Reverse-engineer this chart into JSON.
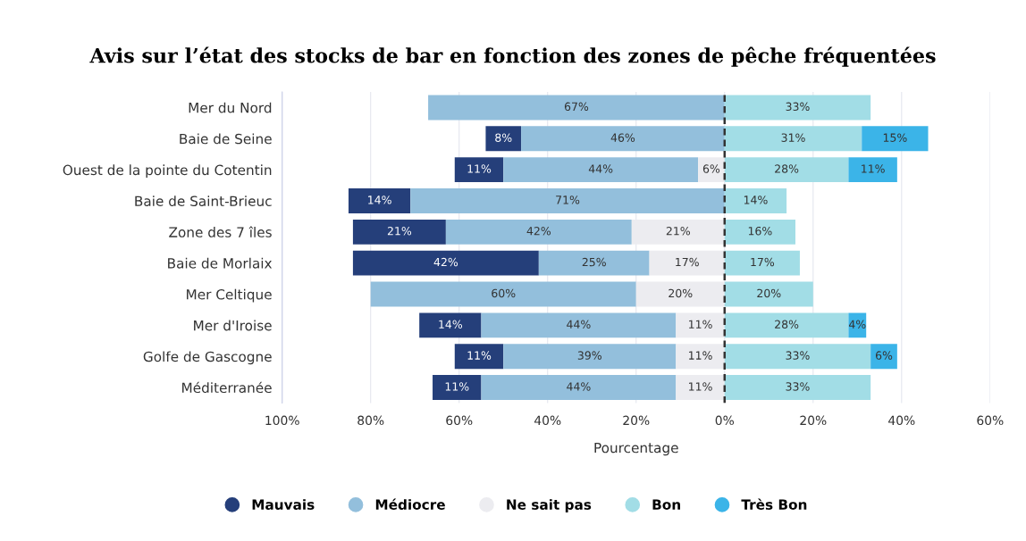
{
  "chart_data": {
    "type": "bar",
    "orientation": "horizontal",
    "title": "Avis sur l’état des stocks de bar en fonction des zones de pêche fréquentées",
    "xlabel": "Pourcentage",
    "categories": [
      "Mer du Nord",
      "Baie de Seine",
      "Ouest de la pointe du Cotentin",
      "Baie de Saint-Brieuc",
      "Zone des 7 îles",
      "Baie de Morlaix",
      "Mer Celtique",
      "Mer d'Iroise",
      "Golfe de Gascogne",
      "Méditerranée"
    ],
    "series": [
      {
        "name": "Mauvais",
        "color": "#253f7a",
        "values": [
          null,
          8,
          11,
          14,
          21,
          42,
          null,
          14,
          11,
          11
        ],
        "base": [
          null,
          -54,
          -61,
          -85,
          -84,
          -84,
          null,
          -69,
          -61,
          -66
        ],
        "value_labels": [
          null,
          "8%",
          "11%",
          "14%",
          "21%",
          "42%",
          null,
          "14%",
          "11%",
          "11%"
        ]
      },
      {
        "name": "Médiocre",
        "color": "#93bfdc",
        "values": [
          67,
          46,
          44,
          71,
          42,
          25,
          60,
          44,
          39,
          44
        ],
        "base": [
          -67,
          -46,
          -50,
          -71,
          -63,
          -42,
          -80,
          -55,
          -50,
          -55
        ],
        "value_labels": [
          "67%",
          "46%",
          "44%",
          "71%",
          "42%",
          "25%",
          "60%",
          "44%",
          "39%",
          "44%"
        ]
      },
      {
        "name": "Ne sait pas",
        "color": "#ececf0",
        "values": [
          null,
          null,
          6,
          null,
          21,
          17,
          20,
          11,
          11,
          11
        ],
        "base": [
          null,
          null,
          -6,
          null,
          -21,
          -17,
          -20,
          -11,
          -11,
          -11
        ],
        "value_labels": [
          null,
          null,
          "6%",
          null,
          "21%",
          "17%",
          "20%",
          "11%",
          "11%",
          "11%"
        ]
      },
      {
        "name": "Bon",
        "color": "#a2dde6",
        "values": [
          33,
          31,
          28,
          14,
          16,
          17,
          20,
          28,
          33,
          33
        ],
        "base": [
          0,
          0,
          0,
          0,
          0,
          0,
          0,
          0,
          0,
          0
        ],
        "value_labels": [
          "33%",
          "31%",
          "28%",
          "14%",
          "16%",
          "17%",
          "20%",
          "28%",
          "33%",
          "33%"
        ]
      },
      {
        "name": "Très Bon",
        "color": "#3bb4e8",
        "values": [
          null,
          15,
          11,
          null,
          null,
          null,
          null,
          4,
          6,
          null
        ],
        "base": [
          null,
          31,
          28,
          null,
          null,
          null,
          null,
          28,
          33,
          null
        ],
        "value_labels": [
          null,
          "15%",
          "11%",
          null,
          null,
          null,
          null,
          "4%",
          "6%",
          null
        ]
      }
    ],
    "xlim": [
      -100,
      60
    ],
    "xticks": [
      {
        "value": -100,
        "label": "100%"
      },
      {
        "value": -80,
        "label": "80%"
      },
      {
        "value": -60,
        "label": "60%"
      },
      {
        "value": -40,
        "label": "40%"
      },
      {
        "value": -20,
        "label": "20%"
      },
      {
        "value": 0,
        "label": "0%"
      },
      {
        "value": 20,
        "label": "20%"
      },
      {
        "value": 40,
        "label": "40%"
      },
      {
        "value": 60,
        "label": "60%"
      }
    ],
    "ref_lines": [
      {
        "axis": "x",
        "value": 0,
        "color": "#333333",
        "line_style": "dashed"
      }
    ],
    "grid": "x",
    "legend": "bottom",
    "marker": "circle"
  }
}
